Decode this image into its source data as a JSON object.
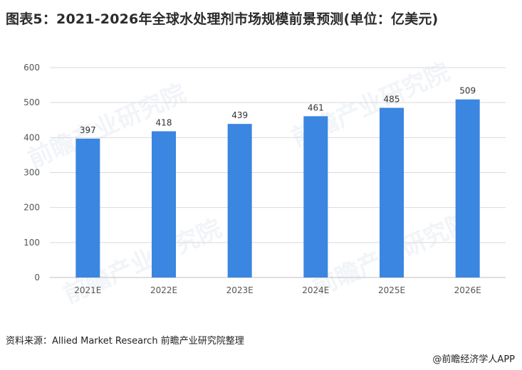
{
  "title": "图表5：2021-2026年全球水处理剂市场规模前景预测(单位：亿美元)",
  "source": "资料来源：Allied Market Research 前瞻产业研究院整理",
  "brand": "@前瞻经济学人APP",
  "watermark": "前瞻产业研究院",
  "colors": {
    "bar": "#3a86e0",
    "grid": "#d9d9d9",
    "axis": "#bfbfbf"
  },
  "chart_data": {
    "type": "bar",
    "categories": [
      "2021E",
      "2022E",
      "2023E",
      "2024E",
      "2025E",
      "2026E"
    ],
    "values": [
      397,
      418,
      439,
      461,
      485,
      509
    ],
    "yticks": [
      0,
      100,
      200,
      300,
      400,
      500,
      600
    ],
    "ylim": [
      0,
      600
    ],
    "grid": true,
    "legend": "none"
  }
}
